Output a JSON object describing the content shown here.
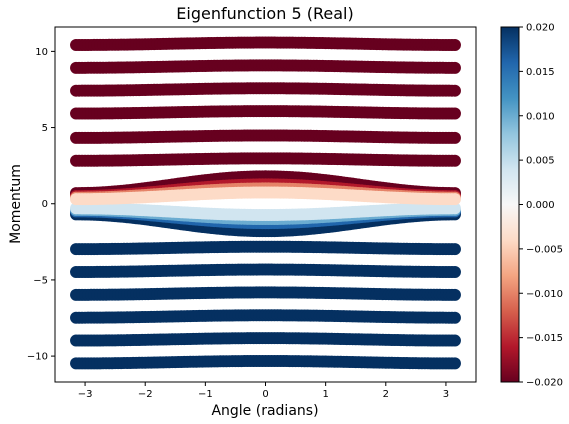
{
  "chart_data": {
    "type": "scatter",
    "title": "Eigenfunction 5 (Real)",
    "xlabel": "Angle (radians)",
    "ylabel": "Momentum",
    "xlim": [
      -3.5,
      3.5
    ],
    "ylim": [
      -11.7,
      11.6
    ],
    "xticks": [
      -3,
      -2,
      -1,
      0,
      1,
      2,
      3
    ],
    "xtick_labels": [
      "−3",
      "−2",
      "−1",
      "0",
      "1",
      "2",
      "3"
    ],
    "yticks": [
      10,
      5,
      0,
      -5,
      -10
    ],
    "ytick_labels": [
      "10",
      "5",
      "0",
      "−5",
      "−10"
    ],
    "grid": false,
    "colormap": "RdBu",
    "colormap_stops": [
      "#67001f",
      "#b2182b",
      "#d6604d",
      "#f4a582",
      "#fddbc7",
      "#f7f7f7",
      "#d1e5f0",
      "#92c5de",
      "#4393c3",
      "#2166ac",
      "#053061"
    ],
    "color_range": [
      -0.02,
      0.02
    ],
    "colorbar_ticks": [
      0.02,
      0.015,
      0.01,
      0.005,
      0.0,
      -0.005,
      -0.01,
      -0.015,
      -0.02
    ],
    "colorbar_tick_labels": [
      "0.020",
      "0.015",
      "0.010",
      "0.005",
      "0.000",
      "−0.005",
      "−0.010",
      "−0.015",
      "−0.020"
    ],
    "bands": [
      {
        "p": 10.5,
        "value": -0.02
      },
      {
        "p": 9.0,
        "value": -0.02
      },
      {
        "p": 7.5,
        "value": -0.02
      },
      {
        "p": 6.0,
        "value": -0.02
      },
      {
        "p": 4.4,
        "value": -0.02
      },
      {
        "p": 2.9,
        "value": -0.02
      },
      {
        "p": -2.9,
        "value": 0.02
      },
      {
        "p": -4.4,
        "value": 0.02
      },
      {
        "p": -5.9,
        "value": 0.02
      },
      {
        "p": -7.4,
        "value": 0.02
      },
      {
        "p": -8.9,
        "value": 0.02
      },
      {
        "p": -10.4,
        "value": 0.02
      }
    ],
    "separatrix_orbits": [
      {
        "amplitude": 2.0,
        "offset": -0.7,
        "value": 0.02
      },
      {
        "amplitude": 1.7,
        "offset": -0.6,
        "value": 0.02
      },
      {
        "amplitude": 1.4,
        "offset": -0.5,
        "value": 0.016
      },
      {
        "amplitude": 1.1,
        "offset": -0.4,
        "value": 0.01
      },
      {
        "amplitude": 0.8,
        "offset": -0.3,
        "value": 0.004
      },
      {
        "amplitude": 0.8,
        "offset": 0.3,
        "value": -0.004
      },
      {
        "amplitude": 1.1,
        "offset": 0.4,
        "value": -0.01
      },
      {
        "amplitude": 1.4,
        "offset": 0.5,
        "value": -0.016
      },
      {
        "amplitude": 1.7,
        "offset": 0.6,
        "value": -0.02
      },
      {
        "amplitude": 2.0,
        "offset": 0.7,
        "value": -0.02
      }
    ]
  }
}
